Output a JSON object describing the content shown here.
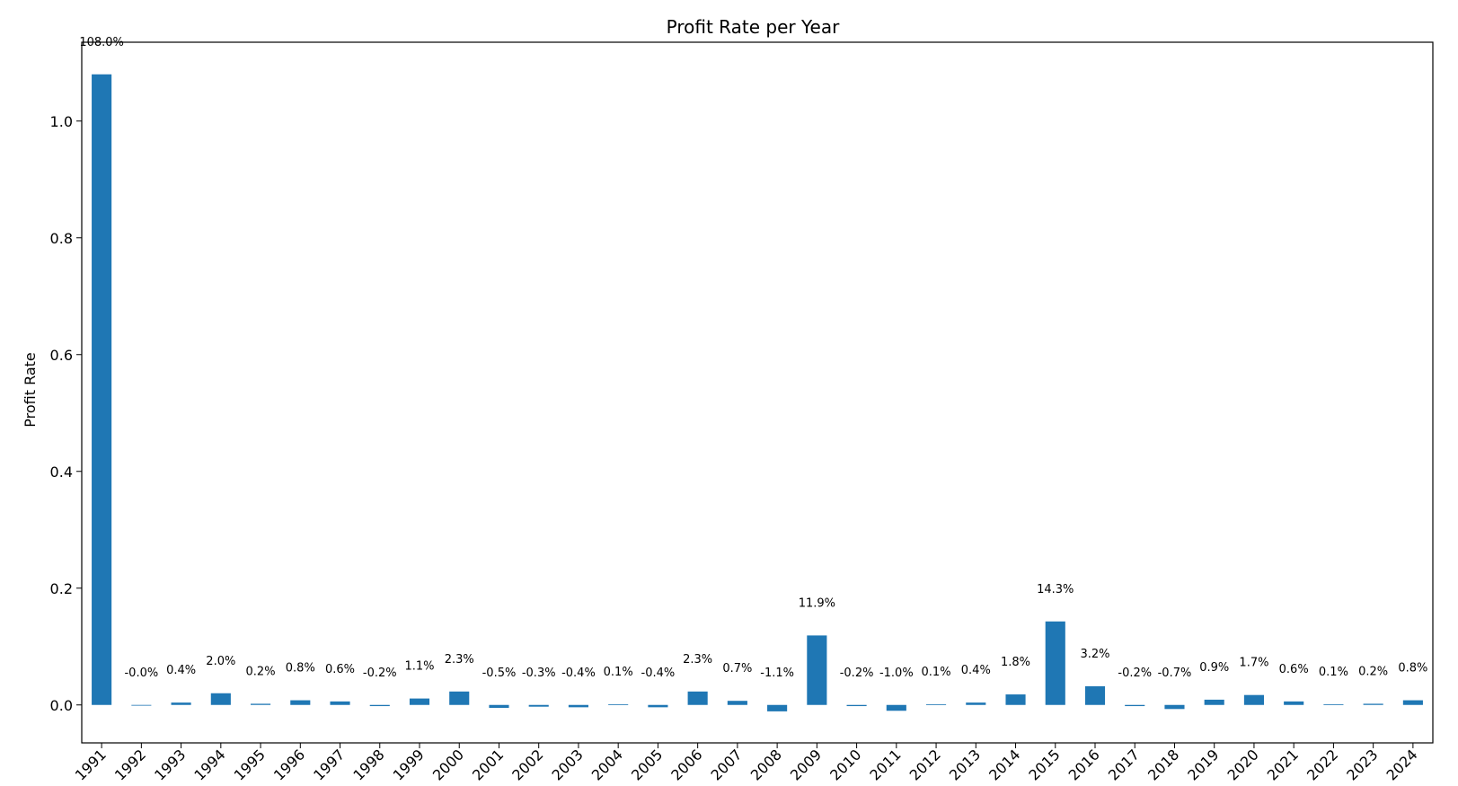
{
  "chart_data": {
    "type": "bar",
    "title": "Profit Rate per Year",
    "xlabel": "",
    "ylabel": "Profit Rate",
    "ylim": [
      -0.065,
      1.135
    ],
    "yticks": [
      "0.0",
      "0.2",
      "0.4",
      "0.6",
      "0.8",
      "1.0"
    ],
    "ytick_values": [
      0.0,
      0.2,
      0.4,
      0.6,
      0.8,
      1.0
    ],
    "bar_color": "#1f77b4",
    "grid": false,
    "legend": "none",
    "categories": [
      "1991",
      "1992",
      "1993",
      "1994",
      "1995",
      "1996",
      "1997",
      "1998",
      "1999",
      "2000",
      "2001",
      "2002",
      "2003",
      "2004",
      "2005",
      "2006",
      "2007",
      "2008",
      "2009",
      "2010",
      "2011",
      "2012",
      "2013",
      "2014",
      "2015",
      "2016",
      "2017",
      "2018",
      "2019",
      "2020",
      "2021",
      "2022",
      "2023",
      "2024"
    ],
    "values": [
      1.08,
      -0.0,
      0.004,
      0.02,
      0.002,
      0.008,
      0.006,
      -0.002,
      0.011,
      0.023,
      -0.005,
      -0.003,
      -0.004,
      0.001,
      -0.004,
      0.023,
      0.007,
      -0.011,
      0.119,
      -0.002,
      -0.01,
      0.001,
      0.004,
      0.018,
      0.143,
      0.032,
      -0.002,
      -0.007,
      0.009,
      0.017,
      0.006,
      0.001,
      0.002,
      0.008
    ],
    "labels": [
      "108.0%",
      "-0.0%",
      "0.4%",
      "2.0%",
      "0.2%",
      "0.8%",
      "0.6%",
      "-0.2%",
      "1.1%",
      "2.3%",
      "-0.5%",
      "-0.3%",
      "-0.4%",
      "0.1%",
      "-0.4%",
      "2.3%",
      "0.7%",
      "-1.1%",
      "11.9%",
      "-0.2%",
      "-1.0%",
      "0.1%",
      "0.4%",
      "1.8%",
      "14.3%",
      "3.2%",
      "-0.2%",
      "-0.7%",
      "0.9%",
      "1.7%",
      "0.6%",
      "0.1%",
      "0.2%",
      "0.8%"
    ]
  }
}
